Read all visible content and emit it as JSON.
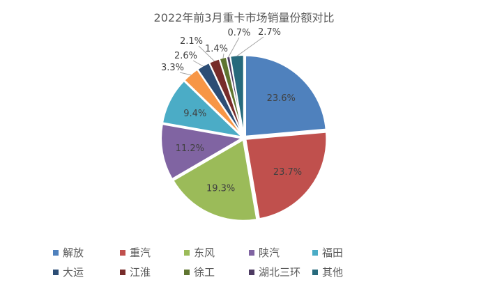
{
  "chart_data": {
    "type": "pie",
    "title": "2022年前3月重卡市场销量份额对比",
    "unit": "%",
    "start_angle": "12 o'clock, clockwise",
    "legend_position": "bottom",
    "slices": [
      {
        "name": "解放",
        "value": 23.6,
        "label": "23.6%",
        "color": "#4F81BD"
      },
      {
        "name": "重汽",
        "value": 23.7,
        "label": "23.7%",
        "color": "#C0504D"
      },
      {
        "name": "东风",
        "value": 19.3,
        "label": "19.3%",
        "color": "#9BBB59"
      },
      {
        "name": "陕汽",
        "value": 11.2,
        "label": "11.2%",
        "color": "#8064A2"
      },
      {
        "name": "福田",
        "value": 9.4,
        "label": "9.4%",
        "color": "#4BACC6"
      },
      {
        "name": "",
        "value": 3.3,
        "label": "3.3%",
        "color": "#F79646"
      },
      {
        "name": "大运",
        "value": 2.6,
        "label": "2.6%",
        "color": "#2C4D75"
      },
      {
        "name": "江淮",
        "value": 2.1,
        "label": "2.1%",
        "color": "#772C2A"
      },
      {
        "name": "徐工",
        "value": 1.4,
        "label": "1.4%",
        "color": "#5F7530"
      },
      {
        "name": "湖北三环",
        "value": 0.7,
        "label": "0.7%",
        "color": "#4D3B62"
      },
      {
        "name": "其他",
        "value": 2.7,
        "label": "2.7%",
        "color": "#276A7C"
      }
    ]
  }
}
